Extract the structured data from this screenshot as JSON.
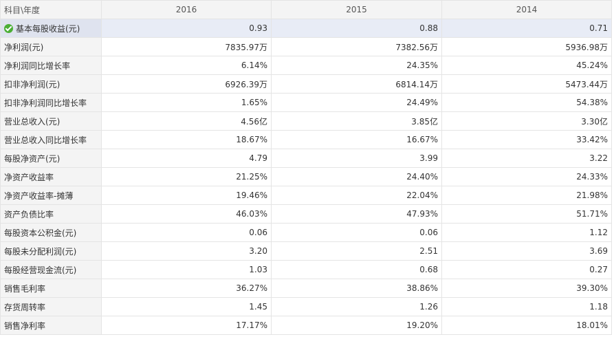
{
  "header": {
    "label": "科目\\年度",
    "years": [
      "2016",
      "2015",
      "2014"
    ]
  },
  "icons": {
    "highlight_row_icon": "check-circle-icon",
    "check_color": "#4caf36"
  },
  "rows": [
    {
      "label": "基本每股收益(元)",
      "values": [
        "0.93",
        "0.88",
        "0.71"
      ]
    },
    {
      "label": "净利润(元)",
      "values": [
        "7835.97万",
        "7382.56万",
        "5936.98万"
      ]
    },
    {
      "label": "净利润同比增长率",
      "values": [
        "6.14%",
        "24.35%",
        "45.24%"
      ]
    },
    {
      "label": "扣非净利润(元)",
      "values": [
        "6926.39万",
        "6814.14万",
        "5473.44万"
      ]
    },
    {
      "label": "扣非净利润同比增长率",
      "values": [
        "1.65%",
        "24.49%",
        "54.38%"
      ]
    },
    {
      "label": "营业总收入(元)",
      "values": [
        "4.56亿",
        "3.85亿",
        "3.30亿"
      ]
    },
    {
      "label": "营业总收入同比增长率",
      "values": [
        "18.67%",
        "16.67%",
        "33.42%"
      ]
    },
    {
      "label": "每股净资产(元)",
      "values": [
        "4.79",
        "3.99",
        "3.22"
      ]
    },
    {
      "label": "净资产收益率",
      "values": [
        "21.25%",
        "24.40%",
        "24.33%"
      ]
    },
    {
      "label": "净资产收益率-摊薄",
      "values": [
        "19.46%",
        "22.04%",
        "21.98%"
      ]
    },
    {
      "label": "资产负债比率",
      "values": [
        "46.03%",
        "47.93%",
        "51.71%"
      ]
    },
    {
      "label": "每股资本公积金(元)",
      "values": [
        "0.06",
        "0.06",
        "1.12"
      ]
    },
    {
      "label": "每股未分配利润(元)",
      "values": [
        "3.20",
        "2.51",
        "3.69"
      ]
    },
    {
      "label": "每股经营现金流(元)",
      "values": [
        "1.03",
        "0.68",
        "0.27"
      ]
    },
    {
      "label": "销售毛利率",
      "values": [
        "36.27%",
        "38.86%",
        "39.30%"
      ]
    },
    {
      "label": "存货周转率",
      "values": [
        "1.45",
        "1.26",
        "1.18"
      ]
    },
    {
      "label": "销售净利率",
      "values": [
        "17.17%",
        "19.20%",
        "18.01%"
      ]
    }
  ]
}
